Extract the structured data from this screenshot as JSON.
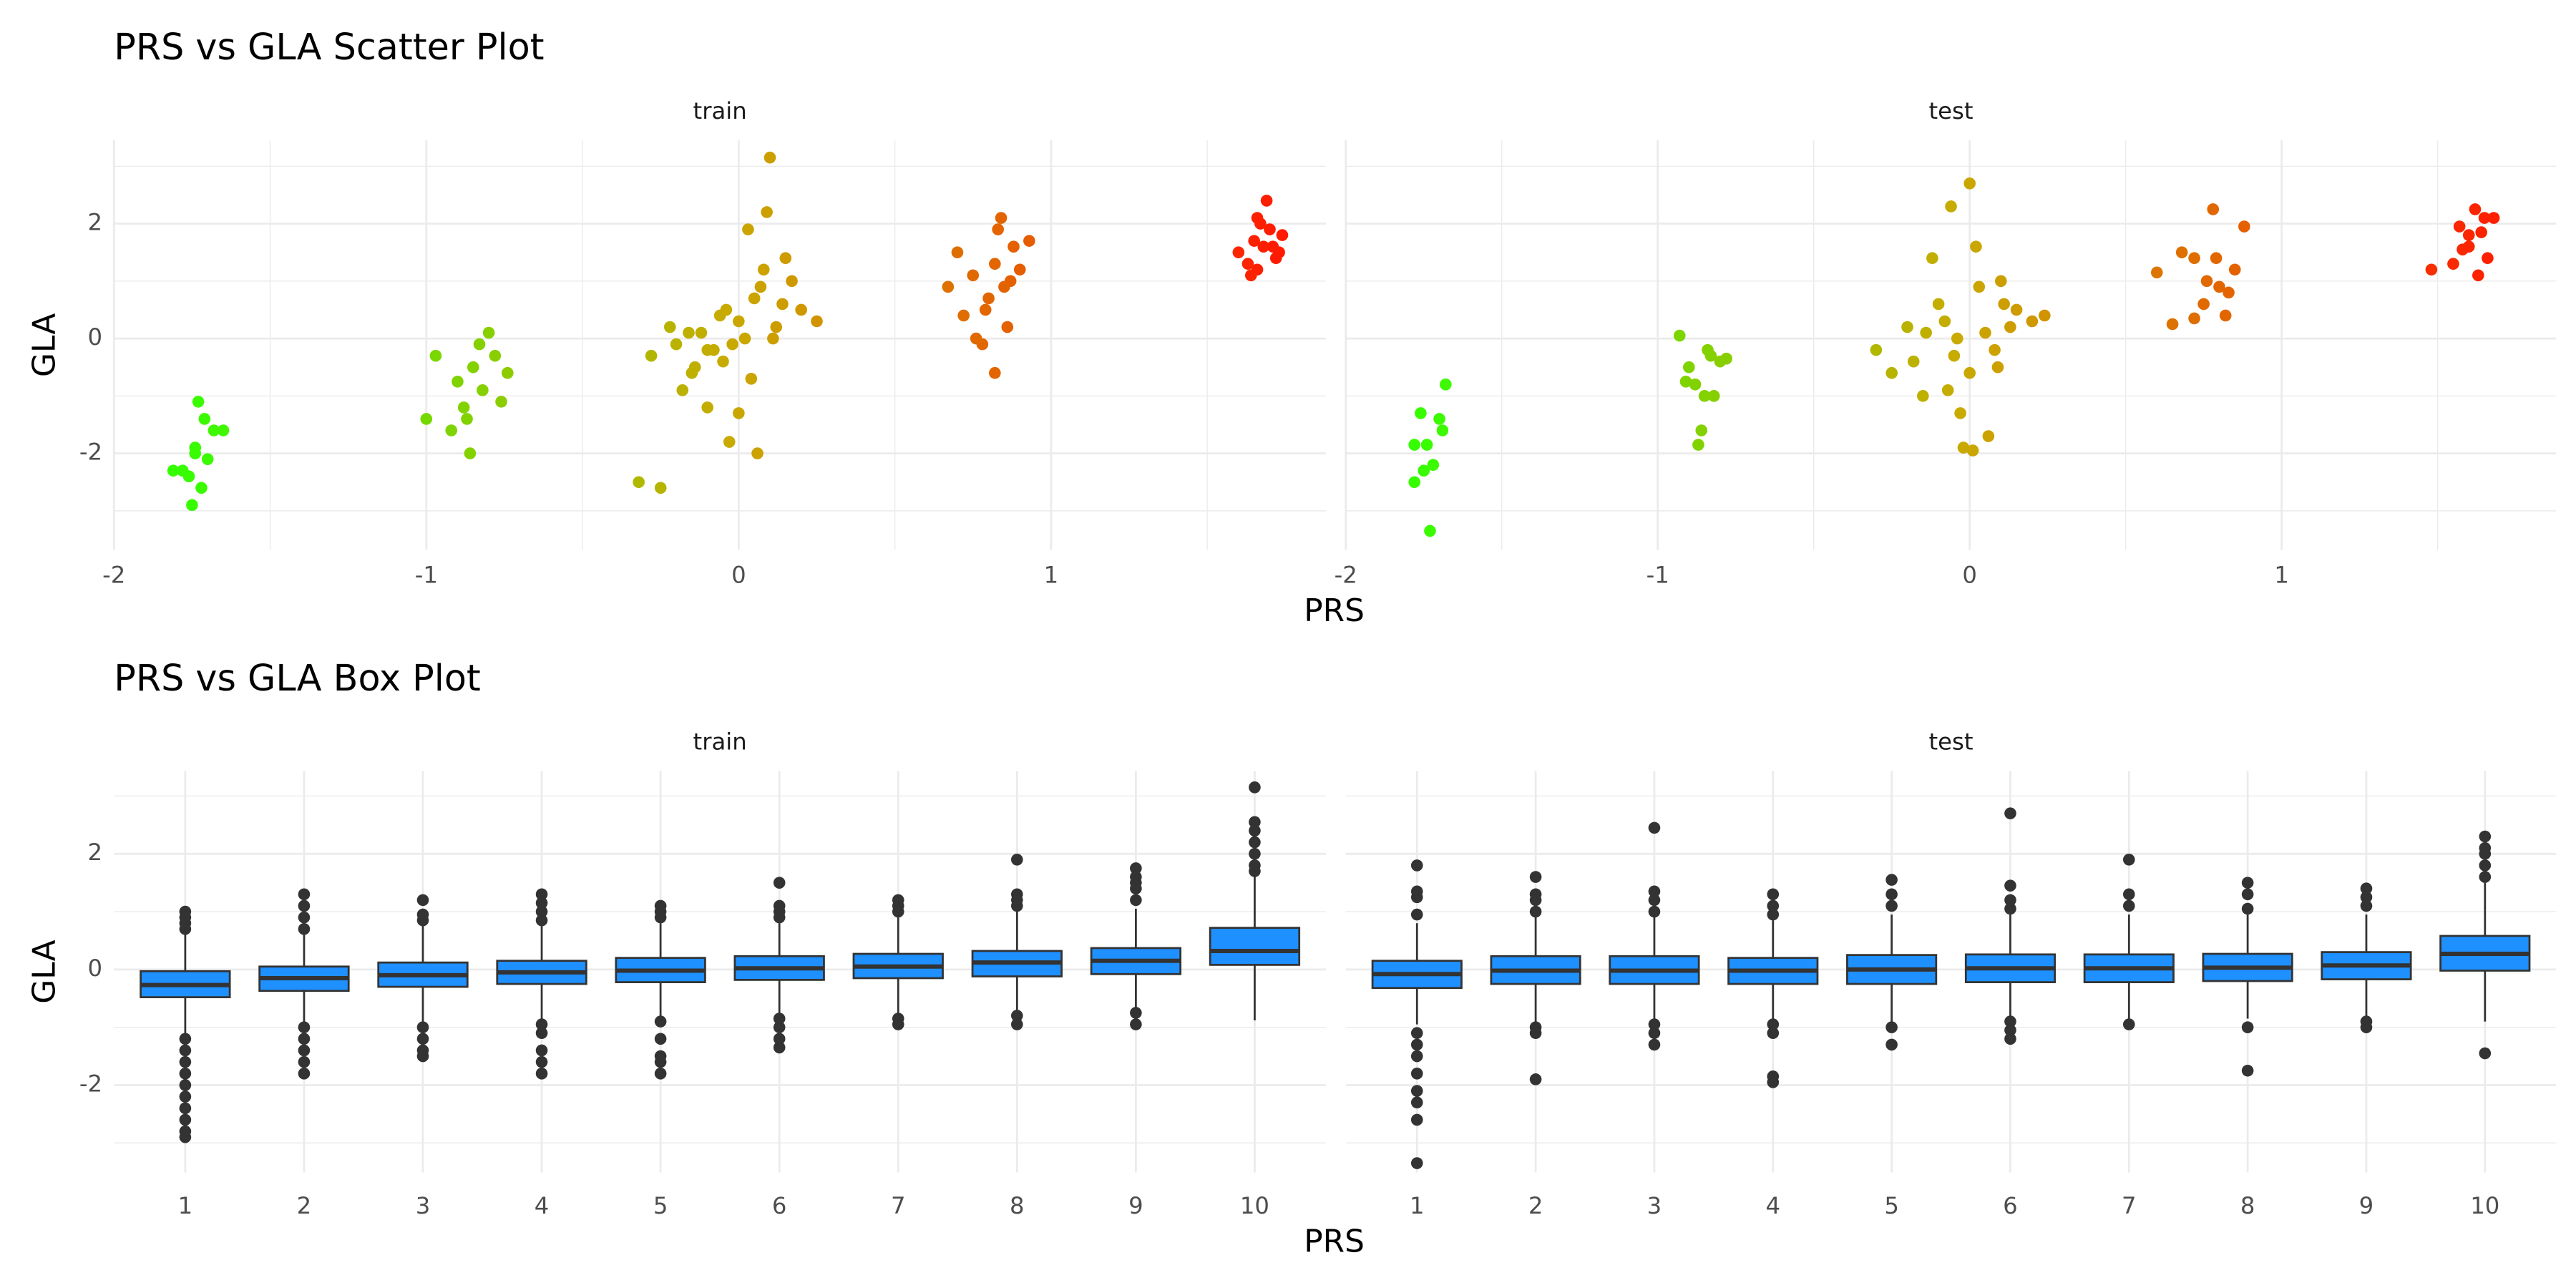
{
  "chart_data": [
    {
      "type": "scatter",
      "title": "PRS vs GLA Scatter Plot",
      "xlabel": "PRS",
      "ylabel": "GLA",
      "xlim": [
        -2.0,
        1.88
      ],
      "ylim": [
        -3.68,
        3.45
      ],
      "xticks": [
        -2,
        -1,
        0,
        1
      ],
      "yticks": [
        -2,
        0,
        2
      ],
      "minor_xticks": [
        -1.5,
        -0.5,
        0.5,
        1.5
      ],
      "minor_yticks": [
        -3,
        -1,
        1,
        3
      ],
      "grid": true,
      "point_colors": [
        "#33ff00",
        "#c8aa00",
        "#ff1a00"
      ],
      "facets": [
        {
          "label": "train",
          "x": [
            -1.75,
            -1.72,
            -1.78,
            -1.7,
            -1.74,
            -1.81,
            -1.68,
            -1.73,
            -1.76,
            -1.71,
            -1.65,
            -1.74,
            -1.0,
            -0.97,
            -0.9,
            -0.88,
            -0.85,
            -0.83,
            -0.8,
            -0.78,
            -0.76,
            -0.86,
            -0.92,
            -0.82,
            -0.74,
            -0.87,
            -0.32,
            -0.25,
            -0.28,
            -0.2,
            -0.15,
            -0.1,
            -0.05,
            0.0,
            0.05,
            0.1,
            0.15,
            0.2,
            0.25,
            -0.22,
            -0.18,
            -0.12,
            -0.08,
            -0.03,
            0.02,
            0.07,
            0.12,
            0.17,
            -0.14,
            -0.06,
            0.04,
            0.09,
            0.14,
            -0.02,
            0.0,
            0.03,
            -0.1,
            0.08,
            -0.04,
            0.11,
            -0.16,
            0.06,
            0.67,
            0.7,
            0.72,
            0.75,
            0.78,
            0.8,
            0.82,
            0.84,
            0.86,
            0.88,
            0.9,
            0.93,
            0.82,
            0.79,
            0.85,
            0.76,
            0.87,
            0.83,
            1.6,
            1.63,
            1.65,
            1.66,
            1.67,
            1.68,
            1.7,
            1.72,
            1.74,
            1.69,
            1.64,
            1.71,
            1.66,
            1.73
          ],
          "y": [
            -2.9,
            -2.6,
            -2.3,
            -2.1,
            -1.9,
            -2.3,
            -1.6,
            -1.1,
            -2.4,
            -1.4,
            -1.6,
            -2.0,
            -1.4,
            -0.3,
            -0.75,
            -1.2,
            -0.5,
            -0.1,
            0.1,
            -0.3,
            -1.1,
            -2.0,
            -1.6,
            -0.9,
            -0.6,
            -1.4,
            -2.5,
            -2.6,
            -0.3,
            -0.1,
            -0.6,
            -1.2,
            -0.4,
            0.3,
            0.7,
            3.15,
            1.4,
            0.5,
            0.3,
            0.2,
            -0.9,
            0.1,
            -0.2,
            -1.8,
            0.0,
            0.9,
            0.2,
            1.0,
            -0.5,
            0.4,
            -0.7,
            2.2,
            0.6,
            -0.1,
            -1.3,
            1.9,
            -0.2,
            1.2,
            0.5,
            0.0,
            0.1,
            -2.0,
            0.9,
            1.5,
            0.4,
            1.1,
            -0.1,
            0.7,
            1.3,
            2.1,
            0.2,
            1.6,
            1.2,
            1.7,
            -0.6,
            0.5,
            0.9,
            0.0,
            1.0,
            1.9,
            1.5,
            1.3,
            1.7,
            1.2,
            2.0,
            1.6,
            1.9,
            1.4,
            1.8,
            2.4,
            1.1,
            1.6,
            2.1,
            1.5
          ]
        },
        {
          "label": "test",
          "x": [
            -1.78,
            -1.76,
            -1.74,
            -1.73,
            -1.7,
            -1.68,
            -1.72,
            -1.75,
            -1.69,
            -1.78,
            -0.93,
            -0.9,
            -0.88,
            -0.86,
            -0.85,
            -0.83,
            -0.8,
            -0.87,
            -0.84,
            -0.91,
            -0.82,
            -0.78,
            -0.3,
            -0.25,
            -0.2,
            -0.15,
            -0.1,
            -0.05,
            0.0,
            0.05,
            0.1,
            0.15,
            0.2,
            0.24,
            -0.18,
            -0.12,
            -0.07,
            -0.02,
            0.03,
            0.08,
            0.13,
            -0.08,
            0.0,
            0.02,
            -0.03,
            0.06,
            -0.14,
            0.11,
            -0.06,
            0.01,
            -0.04,
            0.09,
            0.6,
            0.65,
            0.68,
            0.72,
            0.75,
            0.78,
            0.8,
            0.82,
            0.85,
            0.88,
            0.72,
            0.79,
            0.83,
            0.76,
            1.48,
            1.55,
            1.58,
            1.6,
            1.62,
            1.63,
            1.65,
            1.66,
            1.68,
            1.6,
            1.64,
            1.57
          ],
          "y": [
            -2.5,
            -1.3,
            -1.85,
            -3.35,
            -1.4,
            -0.8,
            -2.2,
            -2.3,
            -1.6,
            -1.85,
            0.05,
            -0.5,
            -0.8,
            -1.6,
            -1.0,
            -0.3,
            -0.4,
            -1.85,
            -0.2,
            -0.75,
            -1.0,
            -0.35,
            -0.2,
            -0.6,
            0.2,
            -1.0,
            0.6,
            -0.3,
            2.7,
            0.1,
            1.0,
            0.5,
            0.3,
            0.4,
            -0.4,
            1.4,
            -0.9,
            -1.9,
            0.9,
            -0.2,
            0.2,
            0.3,
            -0.6,
            1.6,
            -1.3,
            -1.7,
            0.1,
            0.6,
            2.3,
            -1.95,
            0.0,
            -0.5,
            1.15,
            0.25,
            1.5,
            1.4,
            0.6,
            2.25,
            0.9,
            0.4,
            1.2,
            1.95,
            0.35,
            1.4,
            0.8,
            1.0,
            1.2,
            1.3,
            1.55,
            1.8,
            2.25,
            1.1,
            2.1,
            1.4,
            2.1,
            1.6,
            1.85,
            1.95
          ]
        }
      ]
    },
    {
      "type": "box",
      "title": "PRS vs GLA Box Plot",
      "xlabel": "PRS",
      "ylabel": "GLA",
      "categories": [
        "1",
        "2",
        "3",
        "4",
        "5",
        "6",
        "7",
        "8",
        "9",
        "10"
      ],
      "ylim": [
        -3.51,
        3.43
      ],
      "yticks": [
        -2,
        0,
        2
      ],
      "minor_yticks": [
        -3,
        -1,
        1,
        3
      ],
      "grid": true,
      "color": "#1e90ff",
      "edge_color": "#333333",
      "facets": [
        {
          "label": "train",
          "boxes": [
            {
              "lower": -1.1,
              "q1": -0.48,
              "median": -0.27,
              "q3": -0.03,
              "upper": 0.6,
              "outliers": [
                0.7,
                0.8,
                0.9,
                1.0,
                -1.2,
                -1.4,
                -1.6,
                -1.8,
                -2.0,
                -2.2,
                -2.4,
                -2.6,
                -2.8,
                -2.9
              ]
            },
            {
              "lower": -0.9,
              "q1": -0.37,
              "median": -0.15,
              "q3": 0.05,
              "upper": 0.6,
              "outliers": [
                0.7,
                0.9,
                1.1,
                1.3,
                -1.0,
                -1.2,
                -1.4,
                -1.6,
                -1.8
              ]
            },
            {
              "lower": -0.9,
              "q1": -0.3,
              "median": -0.1,
              "q3": 0.12,
              "upper": 0.75,
              "outliers": [
                0.85,
                0.95,
                1.2,
                -1.0,
                -1.2,
                -1.4,
                -1.5
              ]
            },
            {
              "lower": -0.85,
              "q1": -0.25,
              "median": -0.05,
              "q3": 0.15,
              "upper": 0.75,
              "outliers": [
                0.85,
                1.0,
                1.15,
                1.3,
                -0.95,
                -1.1,
                -1.4,
                -1.6,
                -1.8
              ]
            },
            {
              "lower": -0.85,
              "q1": -0.22,
              "median": -0.02,
              "q3": 0.2,
              "upper": 0.8,
              "outliers": [
                0.9,
                1.0,
                1.1,
                -0.9,
                -1.2,
                -1.5,
                -1.6,
                -1.8
              ]
            },
            {
              "lower": -0.8,
              "q1": -0.18,
              "median": 0.02,
              "q3": 0.23,
              "upper": 0.8,
              "outliers": [
                0.9,
                1.0,
                1.1,
                1.5,
                -0.85,
                -1.0,
                -1.2,
                -1.35
              ]
            },
            {
              "lower": -0.8,
              "q1": -0.15,
              "median": 0.05,
              "q3": 0.27,
              "upper": 0.9,
              "outliers": [
                1.0,
                1.1,
                1.2,
                -0.85,
                -0.95
              ]
            },
            {
              "lower": -0.75,
              "q1": -0.12,
              "median": 0.12,
              "q3": 0.32,
              "upper": 1.0,
              "outliers": [
                1.1,
                1.2,
                1.3,
                1.9,
                -0.8,
                -0.95
              ]
            },
            {
              "lower": -0.7,
              "q1": -0.08,
              "median": 0.15,
              "q3": 0.37,
              "upper": 1.05,
              "outliers": [
                1.2,
                1.4,
                1.5,
                1.6,
                1.75,
                -0.75,
                -0.95
              ]
            },
            {
              "lower": -0.88,
              "q1": 0.08,
              "median": 0.32,
              "q3": 0.72,
              "upper": 1.6,
              "outliers": [
                1.7,
                1.8,
                2.0,
                2.2,
                2.4,
                2.55,
                3.15
              ]
            }
          ]
        },
        {
          "label": "test",
          "boxes": [
            {
              "lower": -0.95,
              "q1": -0.32,
              "median": -0.08,
              "q3": 0.15,
              "upper": 0.8,
              "outliers": [
                0.95,
                1.25,
                1.35,
                1.8,
                -1.1,
                -1.3,
                -1.5,
                -1.8,
                -2.1,
                -2.3,
                -2.6,
                -3.35
              ]
            },
            {
              "lower": -0.9,
              "q1": -0.25,
              "median": -0.02,
              "q3": 0.23,
              "upper": 0.9,
              "outliers": [
                1.0,
                1.2,
                1.3,
                1.6,
                -1.0,
                -1.1,
                -1.9
              ]
            },
            {
              "lower": -0.85,
              "q1": -0.25,
              "median": -0.02,
              "q3": 0.23,
              "upper": 0.9,
              "outliers": [
                1.0,
                1.2,
                1.35,
                2.45,
                -0.95,
                -1.1,
                -1.3
              ]
            },
            {
              "lower": -0.85,
              "q1": -0.25,
              "median": -0.02,
              "q3": 0.2,
              "upper": 0.85,
              "outliers": [
                0.95,
                1.1,
                1.3,
                -0.95,
                -1.1,
                -1.85,
                -1.95
              ]
            },
            {
              "lower": -0.9,
              "q1": -0.25,
              "median": 0.0,
              "q3": 0.25,
              "upper": 0.95,
              "outliers": [
                1.1,
                1.3,
                1.55,
                -1.0,
                -1.3
              ]
            },
            {
              "lower": -0.85,
              "q1": -0.22,
              "median": 0.02,
              "q3": 0.26,
              "upper": 0.95,
              "outliers": [
                1.05,
                1.2,
                1.45,
                2.7,
                -0.9,
                -1.05,
                -1.2
              ]
            },
            {
              "lower": -0.9,
              "q1": -0.22,
              "median": 0.02,
              "q3": 0.26,
              "upper": 0.95,
              "outliers": [
                1.1,
                1.3,
                1.9,
                -0.95
              ]
            },
            {
              "lower": -0.85,
              "q1": -0.2,
              "median": 0.03,
              "q3": 0.27,
              "upper": 0.95,
              "outliers": [
                1.05,
                1.3,
                1.5,
                -1.0,
                -1.75
              ]
            },
            {
              "lower": -0.85,
              "q1": -0.17,
              "median": 0.07,
              "q3": 0.3,
              "upper": 0.95,
              "outliers": [
                1.1,
                1.25,
                1.4,
                -0.9,
                -1.0
              ]
            },
            {
              "lower": -0.9,
              "q1": -0.02,
              "median": 0.27,
              "q3": 0.58,
              "upper": 1.5,
              "outliers": [
                1.6,
                1.8,
                2.0,
                2.1,
                2.3,
                -1.45
              ]
            }
          ]
        }
      ]
    }
  ]
}
